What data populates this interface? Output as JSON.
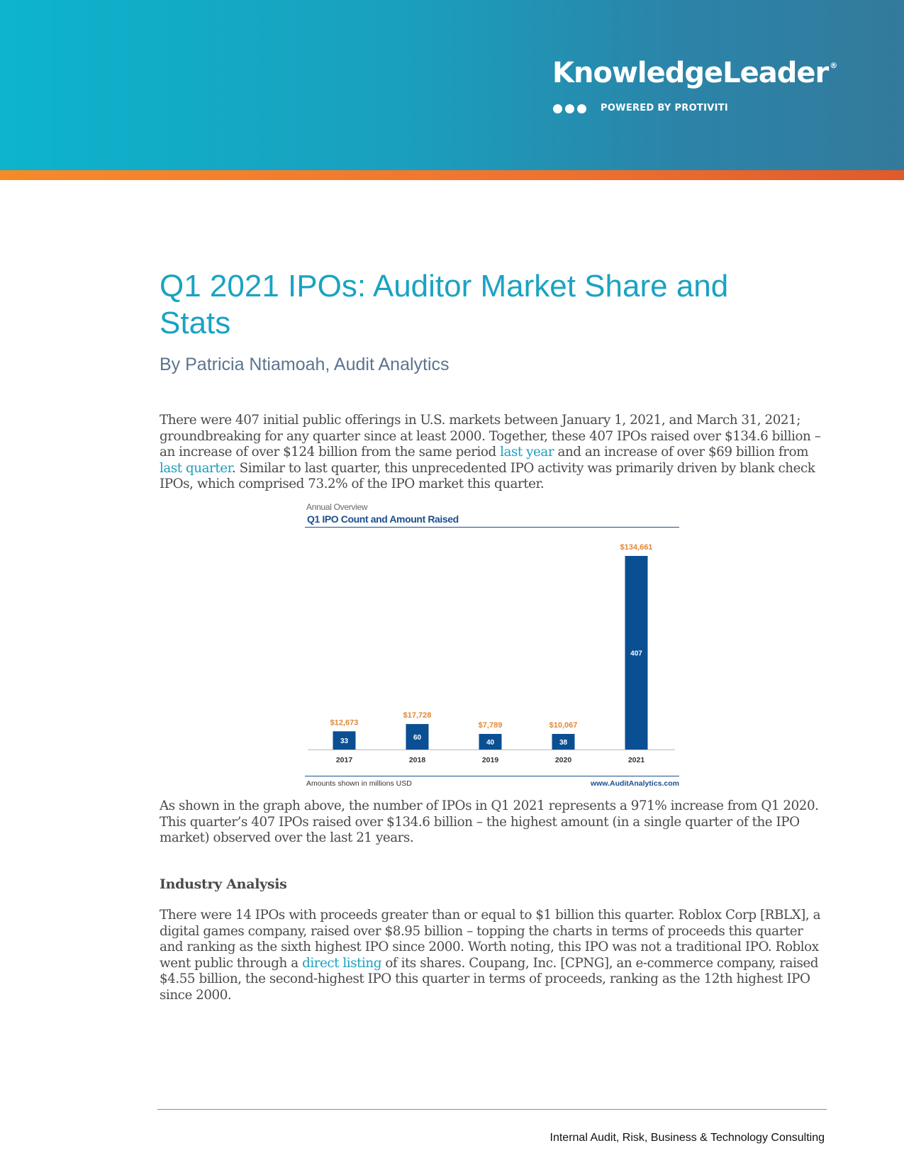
{
  "header": {
    "brand": "KnowledgeLeader",
    "brand_mark": "®",
    "tagline": "POWERED BY PROTIVITI"
  },
  "article": {
    "title": "Q1 2021 IPOs: Auditor Market Share and Stats",
    "byline": "By Patricia Ntiamoah, Audit Analytics",
    "p1": {
      "a": "There were 407 initial public offerings in U.S. markets between January 1, 2021, and March 31, 2021; groundbreaking for any quarter since at least 2000. Together, these 407 IPOs raised over $134.6 billion – an increase of over $124 billion from the same period ",
      "link1": "last year",
      "b": " and an increase of over $69 billion from ",
      "link2": "last quarter",
      "c": ". Similar to last quarter, this unprecedented IPO activity was primarily driven by blank check IPOs, which comprised 73.2% of the IPO market this quarter."
    },
    "p2": "As shown in the graph above, the number of IPOs in Q1 2021 represents a 971% increase from Q1 2020. This quarter’s 407 IPOs raised over $134.6 billion – the highest amount (in a single quarter of the IPO market) observed over the last 21 years.",
    "section_heading": "Industry Analysis",
    "p3": {
      "a": "There were 14 IPOs with proceeds greater than or equal to $1 billion this quarter. Roblox Corp [RBLX], a digital games company, raised over $8.95 billion – topping the charts in terms of proceeds this quarter and ranking as the sixth highest IPO since 2000. Worth noting, this IPO was not a traditional IPO. Roblox went public through a ",
      "link": "direct listing",
      "b": " of its shares. Coupang, Inc. [CPNG], an e-commerce company, raised $4.55 billion, the second-highest IPO this quarter in terms of proceeds, ranking as the 12th highest IPO since 2000."
    }
  },
  "chart_data": {
    "type": "bar",
    "subtitle": "Annual Overview",
    "title": "Q1 IPO Count and Amount Raised",
    "categories": [
      "2017",
      "2018",
      "2019",
      "2020",
      "2021"
    ],
    "series": [
      {
        "values": [
          12673,
          17728,
          7789,
          10067,
          134661
        ]
      },
      {
        "values": [
          33,
          60,
          40,
          38,
          407
        ]
      }
    ],
    "value_labels": [
      "$12,673",
      "$17,728",
      "$7,789",
      "$10,067",
      "$134,661"
    ],
    "count_labels": [
      "33",
      "60",
      "40",
      "38",
      "407"
    ],
    "ylim": [
      0,
      134661
    ],
    "footnote": "Amounts shown in millions USD",
    "source": "www.AuditAnalytics.com",
    "colors": {
      "bar": "#0b4f93",
      "amount_label": "#e0883a",
      "count_label": "#ffffff"
    }
  },
  "footer": {
    "text": "Internal Audit, Risk, Business & Technology Consulting"
  }
}
